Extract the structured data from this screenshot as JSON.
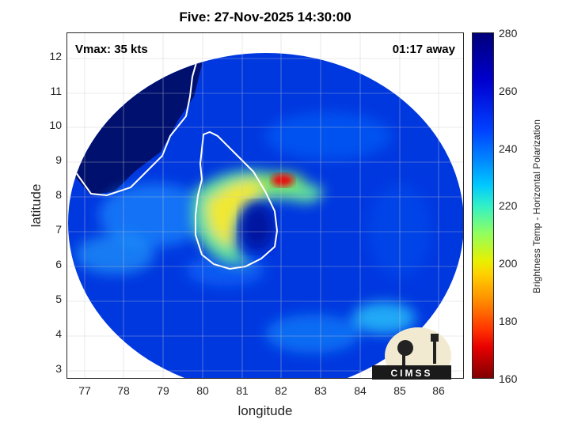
{
  "title": "Five: 27-Nov-2025 14:30:00",
  "vmax_text": "Vmax: 35 kts",
  "away_text": "01:17 away",
  "x_axis": {
    "label": "longitude",
    "ticks": [
      "77",
      "78",
      "79",
      "80",
      "81",
      "82",
      "83",
      "84",
      "85",
      "86"
    ]
  },
  "y_axis": {
    "label": "latitude",
    "ticks": [
      "12",
      "11",
      "10",
      "9",
      "8",
      "7",
      "6",
      "5",
      "4",
      "3"
    ]
  },
  "colorbar": {
    "label": "Brightness Temp - Horizontal Polarization",
    "ticks": [
      "280",
      "260",
      "240",
      "220",
      "200",
      "180",
      "160"
    ]
  },
  "logo_text": "CIMSS",
  "colors": {
    "cold_background": "#0033dd",
    "warm_land": "#000f7a",
    "rainband": "#f0e830",
    "core": "#e81010"
  }
}
